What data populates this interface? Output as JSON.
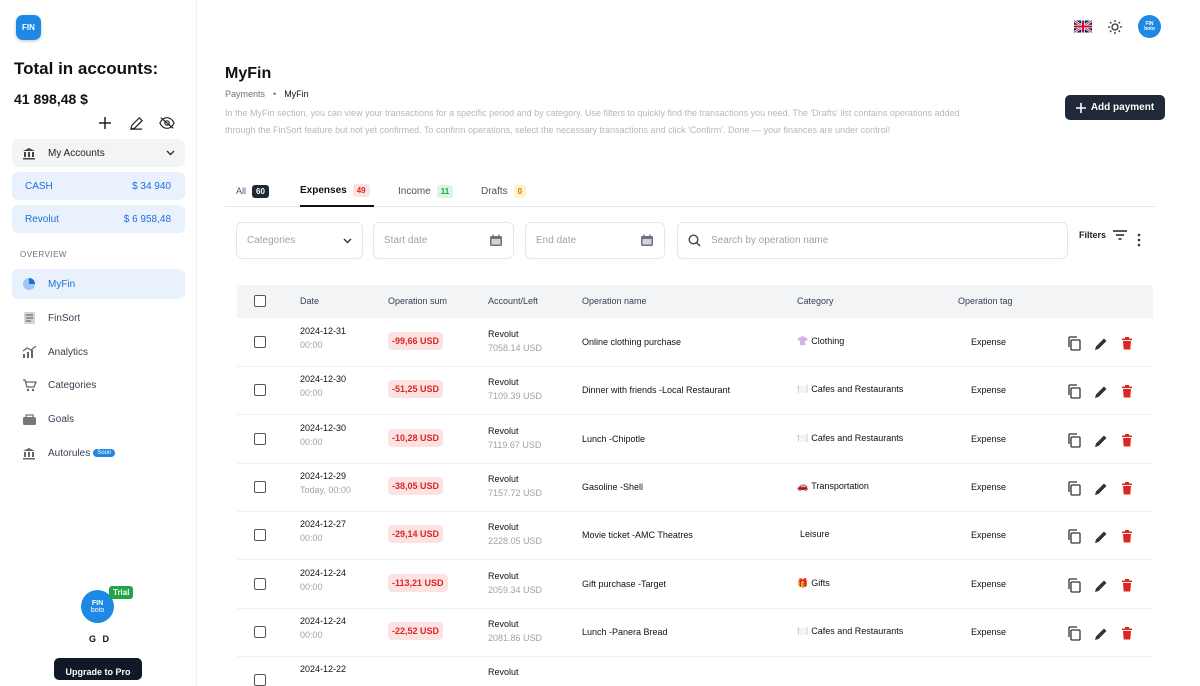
{
  "app": {
    "logo_text": "FIN"
  },
  "sidebar": {
    "total_title": "Total in accounts:",
    "total_value": "41 898,48 $",
    "my_accounts_label": "My Accounts",
    "accounts": [
      {
        "name": "CASH",
        "amount": "$ 34 940"
      },
      {
        "name": "Revolut",
        "amount": "$ 6 958,48"
      }
    ],
    "overview_label": "OVERVIEW",
    "nav": [
      {
        "label": "MyFin",
        "icon": "pie-chart-icon"
      },
      {
        "label": "FinSort",
        "icon": "document-icon"
      },
      {
        "label": "Analytics",
        "icon": "analytics-icon"
      },
      {
        "label": "Categories",
        "icon": "cart-icon"
      },
      {
        "label": "Goals",
        "icon": "goals-icon"
      },
      {
        "label": "Autorules",
        "icon": "bank-icon",
        "badge": "Soon"
      }
    ],
    "user": {
      "avatar_text_top": "FIN",
      "avatar_text_bottom": "boto",
      "trial": "Trial",
      "name": "G D",
      "upgrade": "Upgrade to Pro"
    }
  },
  "header": {
    "avatar_text_top": "FIN",
    "avatar_text_bottom": "boto"
  },
  "main": {
    "title": "MyFin",
    "breadcrumb": [
      "Payments",
      "MyFin"
    ],
    "description": "In the MyFin section, you can view your transactions for a specific period and by category. Use filters to quickly find the transactions you need. The 'Drafts' list contains operations added through the FinSort feature but not yet confirmed. To confirm operations, select the necessary transactions and click 'Confirm'. Done — your finances are under control!",
    "add_payment": "Add payment",
    "tabs": [
      {
        "label": "All",
        "count": "60"
      },
      {
        "label": "Expenses",
        "count": "49"
      },
      {
        "label": "Income",
        "count": "11"
      },
      {
        "label": "Drafts",
        "count": "0"
      }
    ],
    "filters": {
      "categories_placeholder": "Categories",
      "start_date_placeholder": "Start date",
      "end_date_placeholder": "End date",
      "search_placeholder": "Search by operation name",
      "filters_label": "Filters"
    },
    "columns": [
      "Date",
      "Operation sum",
      "Account/Left",
      "Operation name",
      "Category",
      "Operation tag"
    ],
    "rows": [
      {
        "date": "2024-12-31",
        "time": "00:00",
        "sum": "-99,66 USD",
        "account": "Revolut",
        "left": "7058.14 USD",
        "name": "Online clothing purchase",
        "cat_icon": "👚",
        "category": "Clothing",
        "tag": "Expense"
      },
      {
        "date": "2024-12-30",
        "time": "00:00",
        "sum": "-51,25 USD",
        "account": "Revolut",
        "left": "7109.39 USD",
        "name": "Dinner with friends -Local Restaurant",
        "cat_icon": "🍽️",
        "category": "Cafes and Restaurants",
        "tag": "Expense"
      },
      {
        "date": "2024-12-30",
        "time": "00:00",
        "sum": "-10,28 USD",
        "account": "Revolut",
        "left": "7119.67 USD",
        "name": "Lunch -Chipotle",
        "cat_icon": "🍽️",
        "category": "Cafes and Restaurants",
        "tag": "Expense"
      },
      {
        "date": "2024-12-29",
        "time": "Today, 00:00",
        "sum": "-38,05 USD",
        "account": "Revolut",
        "left": "7157.72 USD",
        "name": "Gasoline -Shell",
        "cat_icon": "🚗",
        "category": "Transportation",
        "tag": "Expense"
      },
      {
        "date": "2024-12-27",
        "time": "00:00",
        "sum": "-29,14 USD",
        "account": "Revolut",
        "left": "2228.05 USD",
        "name": "Movie ticket -AMC Theatres",
        "cat_icon": "",
        "category": "Leisure",
        "tag": "Expense"
      },
      {
        "date": "2024-12-24",
        "time": "00:00",
        "sum": "-113,21 USD",
        "account": "Revolut",
        "left": "2059.34 USD",
        "name": "Gift purchase -Target",
        "cat_icon": "🎁",
        "category": "Gifts",
        "tag": "Expense"
      },
      {
        "date": "2024-12-24",
        "time": "00:00",
        "sum": "-22,52 USD",
        "account": "Revolut",
        "left": "2081.86 USD",
        "name": "Lunch -Panera Bread",
        "cat_icon": "🍽️",
        "category": "Cafes and Restaurants",
        "tag": "Expense"
      },
      {
        "date": "2024-12-22",
        "time": "",
        "sum": "",
        "account": "Revolut",
        "left": "",
        "name": "",
        "cat_icon": "",
        "category": "",
        "tag": ""
      }
    ]
  }
}
